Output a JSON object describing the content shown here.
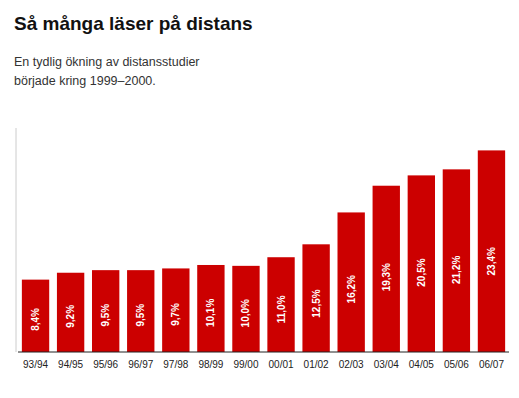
{
  "chart_data": {
    "type": "bar",
    "title": "Så många läser på distans",
    "subtitle": "En tydlig ökning av distansstudier\nbörjade kring 1999–2000.",
    "categories": [
      "93/94",
      "94/95",
      "95/96",
      "96/97",
      "97/98",
      "98/99",
      "99/00",
      "00/01",
      "01/02",
      "02/03",
      "03/04",
      "04/05",
      "05/06",
      "06/07"
    ],
    "values": [
      8.4,
      9.2,
      9.5,
      9.5,
      9.7,
      10.1,
      10.0,
      11.0,
      12.5,
      16.2,
      19.3,
      20.5,
      21.2,
      23.4
    ],
    "value_labels": [
      "8,4%",
      "9,2%",
      "9,5%",
      "9,5%",
      "9,7%",
      "10,1%",
      "10,0%",
      "11,0%",
      "12,5%",
      "16,2%",
      "19,3%",
      "20,5%",
      "21,2%",
      "23,4%"
    ],
    "color": "#cc0000",
    "ylim": [
      0,
      26
    ],
    "data_labels": true,
    "tick_labels": "x"
  }
}
